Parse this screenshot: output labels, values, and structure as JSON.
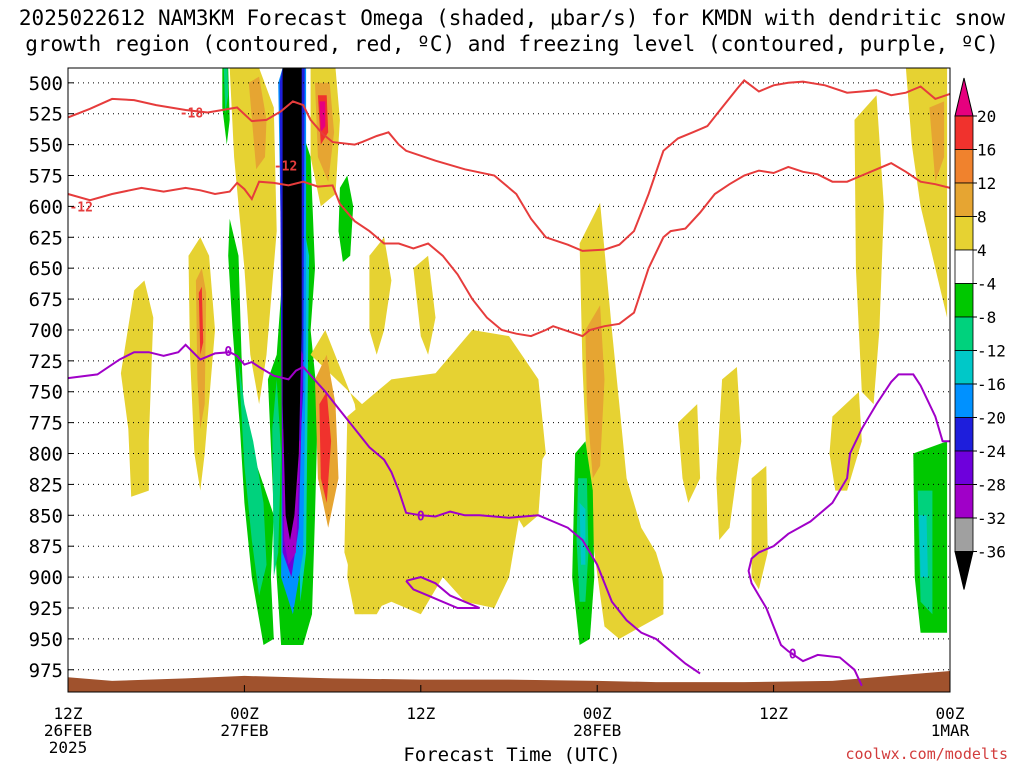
{
  "title_line1": "2025022612 NAM3KM Forecast Omega (shaded, μbar/s) for KMDN with dendritic snow",
  "title_line2": "growth region (contoured, red, ºC) and freezing level (contoured, purple, ºC)",
  "credit": "coolwx.com/modelts",
  "chart_data": {
    "type": "heatmap",
    "xlabel": "Forecast Time (UTC)",
    "x_range_hours": [
      0,
      60
    ],
    "x_ticks": [
      {
        "hour": 0,
        "l1": "12Z",
        "l2": "26FEB",
        "l3": "2025"
      },
      {
        "hour": 12,
        "l1": "00Z",
        "l2": "27FEB",
        "l3": ""
      },
      {
        "hour": 24,
        "l1": "12Z",
        "l2": "",
        "l3": ""
      },
      {
        "hour": 36,
        "l1": "00Z",
        "l2": "28FEB",
        "l3": ""
      },
      {
        "hour": 48,
        "l1": "12Z",
        "l2": "",
        "l3": ""
      },
      {
        "hour": 60,
        "l1": "00Z",
        "l2": "1MAR",
        "l3": ""
      }
    ],
    "y_axis": "pressure (hPa)",
    "y_range": [
      488,
      993
    ],
    "y_ticks": [
      500,
      525,
      550,
      575,
      600,
      625,
      650,
      675,
      700,
      725,
      750,
      775,
      800,
      825,
      850,
      875,
      900,
      925,
      950,
      975
    ],
    "grid": "dotted horizontal",
    "colorbar": {
      "labels": [
        20,
        16,
        12,
        8,
        4,
        -4,
        -8,
        -12,
        -16,
        -20,
        -24,
        -28,
        -32,
        -36
      ],
      "bins": [
        {
          "range": "> 20",
          "color": "#e6007e"
        },
        {
          "range": "16 to 20",
          "color": "#f0322d"
        },
        {
          "range": "12 to 16",
          "color": "#f0822d"
        },
        {
          "range": "8 to 12",
          "color": "#e6a532"
        },
        {
          "range": "4 to 8",
          "color": "#e6d232"
        },
        {
          "range": "-4 to 4",
          "color": "#ffffff"
        },
        {
          "range": "-8 to -4",
          "color": "#00c800"
        },
        {
          "range": "-12 to -8",
          "color": "#00d27d"
        },
        {
          "range": "-16 to -12",
          "color": "#00c8c8"
        },
        {
          "range": "-20 to -16",
          "color": "#0091ff"
        },
        {
          "range": "-24 to -20",
          "color": "#1e1edc"
        },
        {
          "range": "-28 to -24",
          "color": "#6e00dc"
        },
        {
          "range": "-32 to -28",
          "color": "#a000c8"
        },
        {
          "range": "-36 to -32",
          "color": "#a0a0a0"
        },
        {
          "range": "< -36",
          "color": "#000000"
        }
      ]
    },
    "contours": [
      {
        "name": "dgz_top",
        "label": "-18",
        "color": "#e63c3c",
        "points": [
          [
            0,
            528
          ],
          [
            1.5,
            521
          ],
          [
            3,
            513
          ],
          [
            4.5,
            514
          ],
          [
            6,
            518
          ],
          [
            8,
            522
          ],
          [
            9.5,
            524
          ],
          [
            10.5,
            522
          ],
          [
            11.5,
            520
          ],
          [
            12.5,
            531
          ],
          [
            13.5,
            530
          ],
          [
            14.5,
            523
          ],
          [
            15.3,
            515
          ],
          [
            16,
            518
          ],
          [
            16.5,
            530
          ],
          [
            17.3,
            541
          ],
          [
            18,
            548
          ],
          [
            19.5,
            550
          ],
          [
            20,
            548
          ],
          [
            21,
            543
          ],
          [
            21.8,
            540
          ],
          [
            22.5,
            550
          ],
          [
            23,
            555
          ],
          [
            25,
            563
          ],
          [
            27,
            570
          ],
          [
            29,
            575
          ],
          [
            30.5,
            590
          ],
          [
            31.5,
            610
          ],
          [
            32.5,
            625
          ],
          [
            34,
            631
          ],
          [
            35,
            636
          ],
          [
            36.5,
            635
          ],
          [
            37.5,
            631
          ],
          [
            38.5,
            620
          ],
          [
            39.5,
            590
          ],
          [
            40.5,
            555
          ],
          [
            41.5,
            545
          ],
          [
            42.5,
            540
          ],
          [
            43.5,
            535
          ],
          [
            44.5,
            520
          ],
          [
            45.5,
            505
          ],
          [
            46,
            498
          ],
          [
            47,
            507
          ],
          [
            48,
            502
          ],
          [
            49,
            500
          ],
          [
            50,
            499
          ],
          [
            51.5,
            502
          ],
          [
            53,
            508
          ],
          [
            54,
            507
          ],
          [
            55,
            506
          ],
          [
            56,
            510
          ],
          [
            57,
            508
          ],
          [
            58,
            503
          ],
          [
            59,
            513
          ],
          [
            60,
            509
          ]
        ]
      },
      {
        "name": "dgz_bottom",
        "label": "-12",
        "color": "#e63c3c",
        "points": [
          [
            0,
            590
          ],
          [
            1.5,
            595
          ],
          [
            3,
            590
          ],
          [
            5,
            585
          ],
          [
            6.5,
            588
          ],
          [
            8,
            585
          ],
          [
            9,
            587
          ],
          [
            10,
            590
          ],
          [
            11,
            588
          ],
          [
            11.5,
            581
          ],
          [
            12,
            586
          ],
          [
            12.5,
            594
          ],
          [
            13,
            580
          ],
          [
            14,
            581
          ],
          [
            15,
            583
          ],
          [
            16,
            580
          ],
          [
            17,
            584
          ],
          [
            18,
            583
          ],
          [
            18.5,
            598
          ],
          [
            19.5,
            612
          ],
          [
            20.5,
            620
          ],
          [
            21.5,
            630
          ],
          [
            22.5,
            630
          ],
          [
            23.5,
            634
          ],
          [
            24.5,
            630
          ],
          [
            25.5,
            640
          ],
          [
            26.5,
            655
          ],
          [
            27.5,
            675
          ],
          [
            28.5,
            690
          ],
          [
            29.5,
            700
          ],
          [
            30.5,
            703
          ],
          [
            31.5,
            705
          ],
          [
            32.5,
            700
          ],
          [
            33,
            697
          ],
          [
            34,
            701
          ],
          [
            35,
            705
          ],
          [
            35.5,
            700
          ],
          [
            36.5,
            697
          ],
          [
            37.5,
            695
          ],
          [
            38.5,
            686
          ],
          [
            39.5,
            650
          ],
          [
            40.5,
            625
          ],
          [
            41,
            620
          ],
          [
            42,
            618
          ],
          [
            43,
            605
          ],
          [
            44,
            590
          ],
          [
            45,
            582
          ],
          [
            46,
            575
          ],
          [
            47,
            571
          ],
          [
            48,
            573
          ],
          [
            49,
            568
          ],
          [
            50,
            572
          ],
          [
            51,
            574
          ],
          [
            52,
            580
          ],
          [
            53,
            580
          ],
          [
            54,
            575
          ],
          [
            55,
            570
          ],
          [
            56,
            565
          ],
          [
            57,
            572
          ],
          [
            58,
            580
          ],
          [
            59,
            582
          ],
          [
            60,
            585
          ]
        ]
      },
      {
        "name": "fzl",
        "label": "0",
        "color": "#a000c8",
        "points": [
          [
            0,
            739
          ],
          [
            2,
            736
          ],
          [
            3.5,
            724
          ],
          [
            4.5,
            718
          ],
          [
            5.5,
            718
          ],
          [
            6.5,
            721
          ],
          [
            7.5,
            718
          ],
          [
            8,
            712
          ],
          [
            9,
            724
          ],
          [
            10,
            719
          ],
          [
            11,
            718
          ],
          [
            11.5,
            721
          ],
          [
            12,
            728
          ],
          [
            12.5,
            726
          ],
          [
            13,
            730
          ],
          [
            14,
            737
          ],
          [
            15,
            740
          ],
          [
            15.5,
            733
          ],
          [
            16,
            730
          ],
          [
            17.5,
            750
          ],
          [
            18.5,
            765
          ],
          [
            19.5,
            780
          ],
          [
            20.5,
            795
          ],
          [
            21.5,
            805
          ],
          [
            22,
            815
          ],
          [
            22.5,
            830
          ],
          [
            23,
            848
          ],
          [
            24,
            850
          ],
          [
            25,
            851
          ],
          [
            26,
            847
          ],
          [
            27,
            850
          ],
          [
            28,
            850
          ],
          [
            29,
            851
          ],
          [
            30,
            852
          ],
          [
            31,
            851
          ],
          [
            32,
            850
          ],
          [
            33,
            855
          ],
          [
            34,
            860
          ],
          [
            35,
            870
          ],
          [
            36,
            890
          ],
          [
            37,
            920
          ],
          [
            38,
            935
          ],
          [
            39,
            945
          ],
          [
            40,
            950
          ],
          [
            41,
            960
          ],
          [
            42,
            970
          ],
          [
            43,
            978
          ]
        ]
      },
      {
        "name": "fzl_east",
        "label": "0",
        "color": "#a000c8",
        "points": [
          [
            54,
            988
          ],
          [
            53.5,
            975
          ],
          [
            52.5,
            965
          ],
          [
            51,
            963
          ],
          [
            50,
            968
          ],
          [
            49,
            960
          ],
          [
            48.5,
            955
          ],
          [
            48,
            940
          ],
          [
            47.5,
            925
          ],
          [
            47,
            915
          ],
          [
            46.5,
            905
          ],
          [
            46.3,
            895
          ],
          [
            46.5,
            885
          ],
          [
            47,
            880
          ],
          [
            48,
            875
          ],
          [
            49,
            865
          ],
          [
            50.5,
            855
          ],
          [
            52,
            840
          ],
          [
            53,
            820
          ],
          [
            53.2,
            800
          ],
          [
            54,
            780
          ],
          [
            55,
            760
          ],
          [
            56,
            742
          ],
          [
            56.5,
            736
          ],
          [
            57.5,
            736
          ],
          [
            58,
            745
          ],
          [
            59,
            770
          ],
          [
            59.5,
            790
          ],
          [
            60,
            790
          ]
        ]
      },
      {
        "name": "fzl_loop",
        "label": "",
        "color": "#a000c8",
        "points": [
          [
            23,
            903
          ],
          [
            24,
            900
          ],
          [
            25,
            905
          ],
          [
            26,
            915
          ],
          [
            27,
            920
          ],
          [
            28,
            925
          ],
          [
            26.5,
            925
          ],
          [
            25.5,
            920
          ],
          [
            24.5,
            915
          ],
          [
            23.5,
            910
          ],
          [
            23,
            903
          ]
        ]
      }
    ],
    "shaded_regions_omega": [
      {
        "bin": "< -36",
        "note": "strong ascent core near 27FEB 03Z, 488-855 hPa"
      },
      {
        "bin": "> 20",
        "note": "descent maxima near 27FEB 06Z (500-550 hPa) and 26FEB 21Z (670-710 hPa)"
      },
      {
        "bin": "4 to 8",
        "note": "widespread weak descent 26FEB 21Z - 28FEB 09Z and near 1MAR 00Z"
      },
      {
        "bin": "-8 to -4",
        "note": "ascent bands near 27FEB 00Z, 28FEB 00Z and 1MAR 00Z"
      }
    ]
  }
}
